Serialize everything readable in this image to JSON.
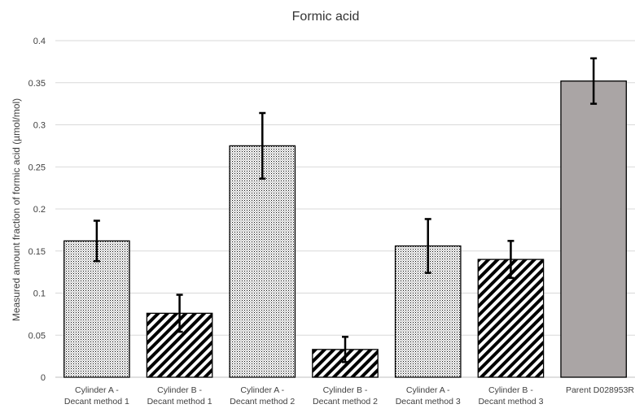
{
  "chart_data": {
    "type": "bar",
    "title": "Formic acid",
    "ylabel": "Measured amount fraction of formic acid (µmol/mol)",
    "xlabel": "",
    "ylim": [
      0,
      0.4
    ],
    "yticks": [
      0,
      0.05,
      0.1,
      0.15,
      0.2,
      0.25,
      0.3,
      0.35,
      0.4
    ],
    "ytick_labels": [
      "0",
      "0.05",
      "0.1",
      "0.15",
      "0.2",
      "0.25",
      "0.3",
      "0.35",
      "0.4"
    ],
    "grid": true,
    "categories": [
      [
        "Cylinder A -",
        "Decant method 1"
      ],
      [
        "Cylinder B -",
        "Decant method 1"
      ],
      [
        "Cylinder A -",
        "Decant method 2"
      ],
      [
        "Cylinder B -",
        "Decant method 2"
      ],
      [
        "Cylinder A -",
        "Decant method 3"
      ],
      [
        "Cylinder B -",
        "Decant method 3"
      ],
      [
        "Parent D028953R"
      ]
    ],
    "values": [
      0.162,
      0.076,
      0.275,
      0.033,
      0.156,
      0.14,
      0.352
    ],
    "errors": [
      0.024,
      0.022,
      0.039,
      0.015,
      0.032,
      0.022,
      0.027
    ],
    "fills": [
      "dots",
      "hatch",
      "dots",
      "hatch",
      "dots",
      "hatch",
      "solid"
    ],
    "colors": {
      "solid_fill": "#aaa5a5",
      "pattern": "#000000",
      "grid": "#d9d9d9",
      "error_bar": "#000000"
    }
  }
}
